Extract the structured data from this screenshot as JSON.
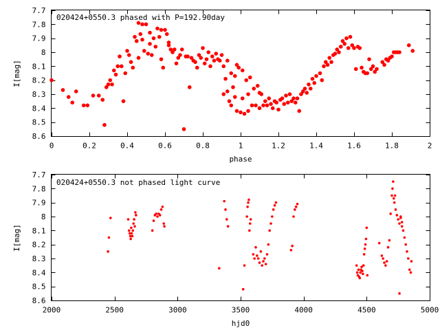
{
  "chart_data": [
    {
      "type": "scatter",
      "title": "020424+0550.3 phased with P=192.90day",
      "xlabel": "phase",
      "ylabel": "I[mag]",
      "xlim": [
        0,
        2
      ],
      "ylim": [
        8.6,
        7.7
      ],
      "y_inverted": true,
      "xticks": [
        0,
        0.2,
        0.4,
        0.6,
        0.8,
        1,
        1.2,
        1.4,
        1.6,
        1.8,
        2
      ],
      "xtick_labels": [
        "0",
        "0.2",
        "0.4",
        "0.6",
        "0.8",
        "1",
        "1.2",
        "1.4",
        "1.6",
        "1.8",
        "2"
      ],
      "yticks": [
        7.7,
        7.8,
        7.9,
        8.0,
        8.1,
        8.2,
        8.3,
        8.4,
        8.5,
        8.6
      ],
      "ytick_labels": [
        "7.7",
        "7.8",
        "7.9",
        "8",
        "8.1",
        "8.2",
        "8.3",
        "8.4",
        "8.5",
        "8.6"
      ],
      "grid": false,
      "marker_color": "#ff0000",
      "points": [
        [
          0.0,
          8.2
        ],
        [
          0.06,
          8.27
        ],
        [
          0.09,
          8.32
        ],
        [
          0.11,
          8.36
        ],
        [
          0.13,
          8.28
        ],
        [
          0.17,
          8.38
        ],
        [
          0.19,
          8.38
        ],
        [
          0.22,
          8.31
        ],
        [
          0.25,
          8.31
        ],
        [
          0.27,
          8.34
        ],
        [
          0.28,
          8.52
        ],
        [
          0.29,
          8.25
        ],
        [
          0.3,
          8.23
        ],
        [
          0.31,
          8.2
        ],
        [
          0.32,
          8.23
        ],
        [
          0.33,
          8.13
        ],
        [
          0.34,
          8.16
        ],
        [
          0.35,
          8.1
        ],
        [
          0.36,
          8.03
        ],
        [
          0.37,
          8.1
        ],
        [
          0.38,
          8.35
        ],
        [
          0.39,
          8.15
        ],
        [
          0.4,
          7.99
        ],
        [
          0.41,
          8.02
        ],
        [
          0.42,
          8.07
        ],
        [
          0.43,
          8.11
        ],
        [
          0.44,
          7.89
        ],
        [
          0.45,
          7.92
        ],
        [
          0.46,
          8.04
        ],
        [
          0.46,
          7.79
        ],
        [
          0.47,
          7.87
        ],
        [
          0.48,
          7.8
        ],
        [
          0.48,
          7.91
        ],
        [
          0.49,
          7.99
        ],
        [
          0.5,
          7.8
        ],
        [
          0.51,
          8.01
        ],
        [
          0.52,
          7.86
        ],
        [
          0.52,
          7.94
        ],
        [
          0.53,
          8.02
        ],
        [
          0.54,
          7.9
        ],
        [
          0.55,
          7.96
        ],
        [
          0.56,
          7.83
        ],
        [
          0.57,
          7.89
        ],
        [
          0.58,
          7.84
        ],
        [
          0.58,
          8.05
        ],
        [
          0.59,
          8.11
        ],
        [
          0.6,
          7.84
        ],
        [
          0.61,
          7.87
        ],
        [
          0.62,
          7.95
        ],
        [
          0.62,
          7.93
        ],
        [
          0.63,
          7.98
        ],
        [
          0.64,
          8.0
        ],
        [
          0.65,
          7.98
        ],
        [
          0.66,
          8.08
        ],
        [
          0.67,
          8.04
        ],
        [
          0.68,
          8.02
        ],
        [
          0.69,
          7.98
        ],
        [
          0.7,
          8.55
        ],
        [
          0.71,
          8.03
        ],
        [
          0.72,
          8.03
        ],
        [
          0.73,
          8.25
        ],
        [
          0.74,
          8.04
        ],
        [
          0.75,
          8.06
        ],
        [
          0.76,
          8.07
        ],
        [
          0.77,
          8.11
        ],
        [
          0.78,
          8.02
        ],
        [
          0.79,
          8.04
        ],
        [
          0.8,
          7.97
        ],
        [
          0.81,
          8.08
        ],
        [
          0.82,
          8.05
        ],
        [
          0.83,
          8.0
        ],
        [
          0.84,
          8.1
        ],
        [
          0.85,
          8.03
        ],
        [
          0.86,
          8.06
        ],
        [
          0.87,
          8.01
        ],
        [
          0.88,
          8.05
        ],
        [
          0.89,
          8.06
        ],
        [
          0.9,
          8.02
        ],
        [
          0.91,
          8.1
        ],
        [
          0.91,
          8.3
        ],
        [
          0.92,
          8.19
        ],
        [
          0.93,
          8.06
        ],
        [
          0.93,
          8.28
        ],
        [
          0.94,
          8.35
        ],
        [
          0.95,
          8.15
        ],
        [
          0.95,
          8.38
        ],
        [
          0.96,
          8.25
        ],
        [
          0.97,
          8.17
        ],
        [
          0.97,
          8.32
        ],
        [
          0.98,
          8.09
        ],
        [
          0.98,
          8.42
        ],
        [
          0.99,
          8.11
        ],
        [
          1.0,
          8.43
        ],
        [
          1.01,
          8.13
        ],
        [
          1.01,
          8.33
        ],
        [
          1.02,
          8.44
        ],
        [
          1.03,
          8.2
        ],
        [
          1.04,
          8.3
        ],
        [
          1.04,
          8.42
        ],
        [
          1.05,
          8.18
        ],
        [
          1.06,
          8.38
        ],
        [
          1.07,
          8.26
        ],
        [
          1.08,
          8.38
        ],
        [
          1.09,
          8.24
        ],
        [
          1.1,
          8.29
        ],
        [
          1.1,
          8.4
        ],
        [
          1.11,
          8.3
        ],
        [
          1.12,
          8.38
        ],
        [
          1.13,
          8.35
        ],
        [
          1.14,
          8.38
        ],
        [
          1.15,
          8.33
        ],
        [
          1.16,
          8.37
        ],
        [
          1.17,
          8.4
        ],
        [
          1.18,
          8.35
        ],
        [
          1.19,
          8.36
        ],
        [
          1.2,
          8.41
        ],
        [
          1.21,
          8.34
        ],
        [
          1.22,
          8.33
        ],
        [
          1.23,
          8.37
        ],
        [
          1.24,
          8.31
        ],
        [
          1.25,
          8.36
        ],
        [
          1.26,
          8.3
        ],
        [
          1.27,
          8.35
        ],
        [
          1.28,
          8.33
        ],
        [
          1.29,
          8.36
        ],
        [
          1.3,
          8.33
        ],
        [
          1.31,
          8.42
        ],
        [
          1.32,
          8.3
        ],
        [
          1.33,
          8.28
        ],
        [
          1.34,
          8.26
        ],
        [
          1.35,
          8.29
        ],
        [
          1.36,
          8.23
        ],
        [
          1.37,
          8.26
        ],
        [
          1.38,
          8.19
        ],
        [
          1.39,
          8.22
        ],
        [
          1.4,
          8.17
        ],
        [
          1.42,
          8.15
        ],
        [
          1.43,
          8.2
        ],
        [
          1.44,
          8.1
        ],
        [
          1.45,
          8.07
        ],
        [
          1.46,
          8.09
        ],
        [
          1.47,
          8.04
        ],
        [
          1.48,
          8.07
        ],
        [
          1.49,
          8.02
        ],
        [
          1.5,
          8.01
        ],
        [
          1.51,
          7.98
        ],
        [
          1.52,
          8.0
        ],
        [
          1.53,
          7.96
        ],
        [
          1.54,
          7.92
        ],
        [
          1.55,
          7.94
        ],
        [
          1.56,
          7.9
        ],
        [
          1.57,
          7.97
        ],
        [
          1.58,
          7.89
        ],
        [
          1.59,
          7.95
        ],
        [
          1.6,
          7.97
        ],
        [
          1.61,
          8.12
        ],
        [
          1.62,
          7.96
        ],
        [
          1.63,
          7.97
        ],
        [
          1.64,
          8.11
        ],
        [
          1.65,
          8.14
        ],
        [
          1.66,
          8.15
        ],
        [
          1.67,
          8.15
        ],
        [
          1.68,
          8.05
        ],
        [
          1.69,
          8.12
        ],
        [
          1.7,
          8.1
        ],
        [
          1.71,
          8.14
        ],
        [
          1.72,
          8.12
        ],
        [
          1.75,
          8.07
        ],
        [
          1.76,
          8.09
        ],
        [
          1.77,
          8.05
        ],
        [
          1.78,
          8.06
        ],
        [
          1.79,
          8.04
        ],
        [
          1.8,
          8.03
        ],
        [
          1.81,
          8.0
        ],
        [
          1.82,
          8.0
        ],
        [
          1.83,
          8.0
        ],
        [
          1.84,
          8.0
        ],
        [
          1.89,
          7.95
        ],
        [
          1.91,
          7.99
        ]
      ]
    },
    {
      "type": "scatter",
      "title": "020424+0550.3 not phased light curve",
      "xlabel": "hjd0",
      "ylabel": "I[mag]",
      "xlim": [
        2000,
        5000
      ],
      "ylim": [
        8.6,
        7.7
      ],
      "y_inverted": true,
      "xticks": [
        2000,
        2500,
        3000,
        3500,
        4000,
        4500,
        5000
      ],
      "xtick_labels": [
        "2000",
        "2500",
        "3000",
        "3500",
        "4000",
        "4500",
        "5000"
      ],
      "yticks": [
        7.7,
        7.8,
        7.9,
        8.0,
        8.1,
        8.2,
        8.3,
        8.4,
        8.5,
        8.6
      ],
      "ytick_labels": [
        "7.7",
        "7.8",
        "7.9",
        "8",
        "8.1",
        "8.2",
        "8.3",
        "8.4",
        "8.5",
        "8.6"
      ],
      "grid": false,
      "marker_color": "#ff0000",
      "points": [
        [
          2448,
          8.25
        ],
        [
          2455,
          8.15
        ],
        [
          2468,
          8.01
        ],
        [
          2608,
          8.02
        ],
        [
          2615,
          8.1
        ],
        [
          2620,
          8.12
        ],
        [
          2625,
          8.14
        ],
        [
          2628,
          8.16
        ],
        [
          2632,
          8.08
        ],
        [
          2636,
          8.12
        ],
        [
          2640,
          8.14
        ],
        [
          2645,
          8.1
        ],
        [
          2650,
          8.05
        ],
        [
          2655,
          8.02
        ],
        [
          2660,
          8.07
        ],
        [
          2665,
          7.97
        ],
        [
          2670,
          7.99
        ],
        [
          2800,
          8.1
        ],
        [
          2810,
          8.03
        ],
        [
          2820,
          7.99
        ],
        [
          2830,
          7.98
        ],
        [
          2840,
          8.0
        ],
        [
          2850,
          7.98
        ],
        [
          2860,
          7.99
        ],
        [
          2870,
          7.95
        ],
        [
          2880,
          7.93
        ],
        [
          2890,
          8.05
        ],
        [
          2895,
          8.07
        ],
        [
          3330,
          8.37
        ],
        [
          3370,
          7.89
        ],
        [
          3380,
          7.95
        ],
        [
          3390,
          8.02
        ],
        [
          3400,
          8.07
        ],
        [
          3520,
          8.52
        ],
        [
          3530,
          8.35
        ],
        [
          3550,
          8.0
        ],
        [
          3555,
          7.93
        ],
        [
          3560,
          7.9
        ],
        [
          3565,
          7.88
        ],
        [
          3570,
          8.1
        ],
        [
          3575,
          8.05
        ],
        [
          3580,
          8.02
        ],
        [
          3600,
          8.27
        ],
        [
          3610,
          8.3
        ],
        [
          3620,
          8.22
        ],
        [
          3630,
          8.28
        ],
        [
          3640,
          8.3
        ],
        [
          3650,
          8.33
        ],
        [
          3660,
          8.25
        ],
        [
          3670,
          8.35
        ],
        [
          3680,
          8.32
        ],
        [
          3690,
          8.3
        ],
        [
          3700,
          8.34
        ],
        [
          3710,
          8.27
        ],
        [
          3720,
          8.2
        ],
        [
          3730,
          8.1
        ],
        [
          3740,
          8.05
        ],
        [
          3750,
          8.0
        ],
        [
          3760,
          7.95
        ],
        [
          3770,
          7.92
        ],
        [
          3780,
          7.9
        ],
        [
          3900,
          8.24
        ],
        [
          3910,
          8.21
        ],
        [
          3920,
          8.0
        ],
        [
          3930,
          7.95
        ],
        [
          3940,
          7.93
        ],
        [
          3950,
          7.91
        ],
        [
          4420,
          8.35
        ],
        [
          4425,
          8.4
        ],
        [
          4430,
          8.42
        ],
        [
          4435,
          8.38
        ],
        [
          4440,
          8.43
        ],
        [
          4445,
          8.44
        ],
        [
          4450,
          8.4
        ],
        [
          4455,
          8.38
        ],
        [
          4460,
          8.36
        ],
        [
          4465,
          8.39
        ],
        [
          4470,
          8.41
        ],
        [
          4475,
          8.35
        ],
        [
          4480,
          8.27
        ],
        [
          4485,
          8.23
        ],
        [
          4490,
          8.2
        ],
        [
          4495,
          8.16
        ],
        [
          4500,
          8.08
        ],
        [
          4505,
          8.42
        ],
        [
          4600,
          8.19
        ],
        [
          4620,
          8.28
        ],
        [
          4630,
          8.3
        ],
        [
          4640,
          8.33
        ],
        [
          4650,
          8.35
        ],
        [
          4660,
          8.32
        ],
        [
          4670,
          8.22
        ],
        [
          4680,
          8.17
        ],
        [
          4690,
          7.98
        ],
        [
          4700,
          7.85
        ],
        [
          4705,
          7.8
        ],
        [
          4710,
          7.75
        ],
        [
          4715,
          7.87
        ],
        [
          4720,
          7.9
        ],
        [
          4725,
          7.85
        ],
        [
          4730,
          7.95
        ],
        [
          4740,
          7.99
        ],
        [
          4750,
          8.02
        ],
        [
          4760,
          8.05
        ],
        [
          4770,
          8.01
        ],
        [
          4780,
          8.07
        ],
        [
          4790,
          8.1
        ],
        [
          4800,
          8.15
        ],
        [
          4810,
          8.2
        ],
        [
          4820,
          8.25
        ],
        [
          4830,
          8.3
        ],
        [
          4840,
          8.38
        ],
        [
          4850,
          8.4
        ],
        [
          4855,
          8.32
        ],
        [
          4760,
          8.55
        ],
        [
          4770,
          8.0
        ],
        [
          4780,
          8.04
        ]
      ]
    }
  ]
}
